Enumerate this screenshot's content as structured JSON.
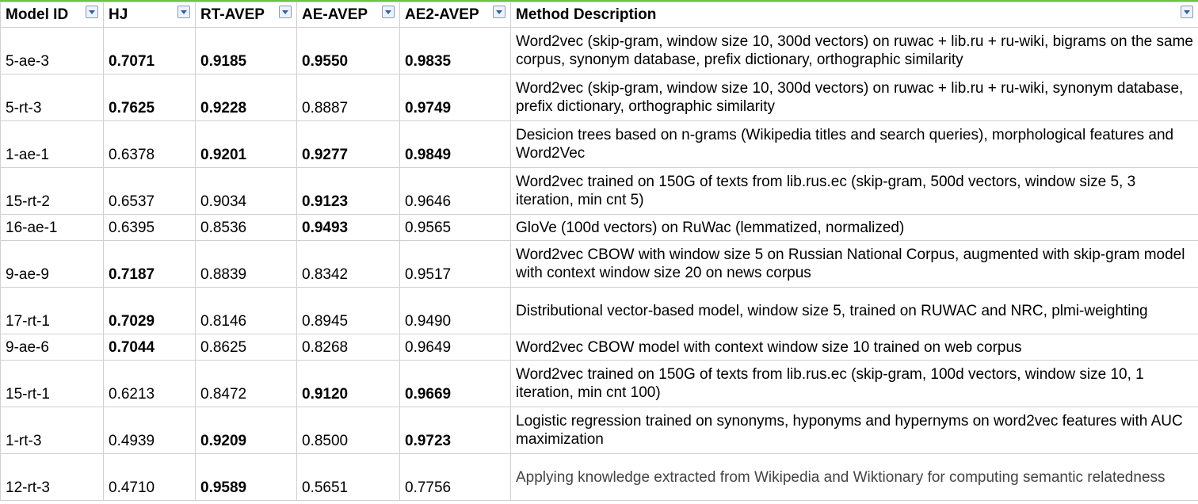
{
  "columns": [
    {
      "label": "Model ID"
    },
    {
      "label": "HJ"
    },
    {
      "label": "RT-AVEP"
    },
    {
      "label": "AE-AVEP"
    },
    {
      "label": "AE2-AVEP"
    },
    {
      "label": "Method Description"
    }
  ],
  "rows": [
    {
      "id": "5-ae-3",
      "hj": "0.7071",
      "rt": "0.9185",
      "ae": "0.9550",
      "ae2": "0.9835",
      "desc": "Word2vec (skip-gram, window size 10, 300d vectors) on ruwac + lib.ru + ru-wiki, bigrams on the same corpus, synonym database, prefix dictionary, orthographic similarity"
    },
    {
      "id": "5-rt-3",
      "hj": "0.7625",
      "rt": "0.9228",
      "ae": "0.8887",
      "ae2": "0.9749",
      "desc": "Word2vec (skip-gram, window size 10, 300d vectors) on ruwac + lib.ru + ru-wiki, synonym database, prefix dictionary, orthographic similarity"
    },
    {
      "id": "1-ae-1",
      "hj": "0.6378",
      "rt": "0.9201",
      "ae": "0.9277",
      "ae2": "0.9849",
      "desc": "Desicion trees based on n-grams (Wikipedia titles and search queries), morphological features and Word2Vec"
    },
    {
      "id": "15-rt-2",
      "hj": "0.6537",
      "rt": "0.9034",
      "ae": "0.9123",
      "ae2": "0.9646",
      "desc": "Word2vec trained on 150G of texts from lib.rus.ec (skip-gram, 500d vectors, window size 5, 3 iteration, min cnt 5)"
    },
    {
      "id": "16-ae-1",
      "hj": "0.6395",
      "rt": "0.8536",
      "ae": "0.9493",
      "ae2": "0.9565",
      "desc": "GloVe (100d vectors) on RuWac (lemmatized, normalized)"
    },
    {
      "id": "9-ae-9",
      "hj": "0.7187",
      "rt": "0.8839",
      "ae": "0.8342",
      "ae2": "0.9517",
      "desc": "Word2vec CBOW with window size 5 on Russian National Corpus, augmented with skip-gram model with context window size 20 on news corpus"
    },
    {
      "id": "17-rt-1",
      "hj": "0.7029",
      "rt": "0.8146",
      "ae": "0.8945",
      "ae2": "0.9490",
      "desc": "Distributional vector-based model, window size 5, trained on RUWAC and NRC, plmi-weighting"
    },
    {
      "id": "9-ae-6",
      "hj": "0.7044",
      "rt": "0.8625",
      "ae": "0.8268",
      "ae2": "0.9649",
      "desc": "Word2vec CBOW model with context window size 10 trained on web corpus"
    },
    {
      "id": "15-rt-1",
      "hj": "0.6213",
      "rt": "0.8472",
      "ae": "0.9120",
      "ae2": "0.9669",
      "desc": "Word2vec trained on 150G of texts from lib.rus.ec (skip-gram, 100d vectors, window size 10, 1 iteration, min cnt 100)"
    },
    {
      "id": "1-rt-3",
      "hj": "0.4939",
      "rt": "0.9209",
      "ae": "0.8500",
      "ae2": "0.9723",
      "desc": "Logistic regression trained on synonyms, hyponyms and hypernyms on word2vec features with AUC maximization"
    },
    {
      "id": "12-rt-3",
      "hj": "0.4710",
      "rt": "0.9589",
      "ae": "0.5651",
      "ae2": "0.7756",
      "desc": "Applying knowledge extracted from Wikipedia and Wiktionary for computing semantic relatedness"
    }
  ]
}
